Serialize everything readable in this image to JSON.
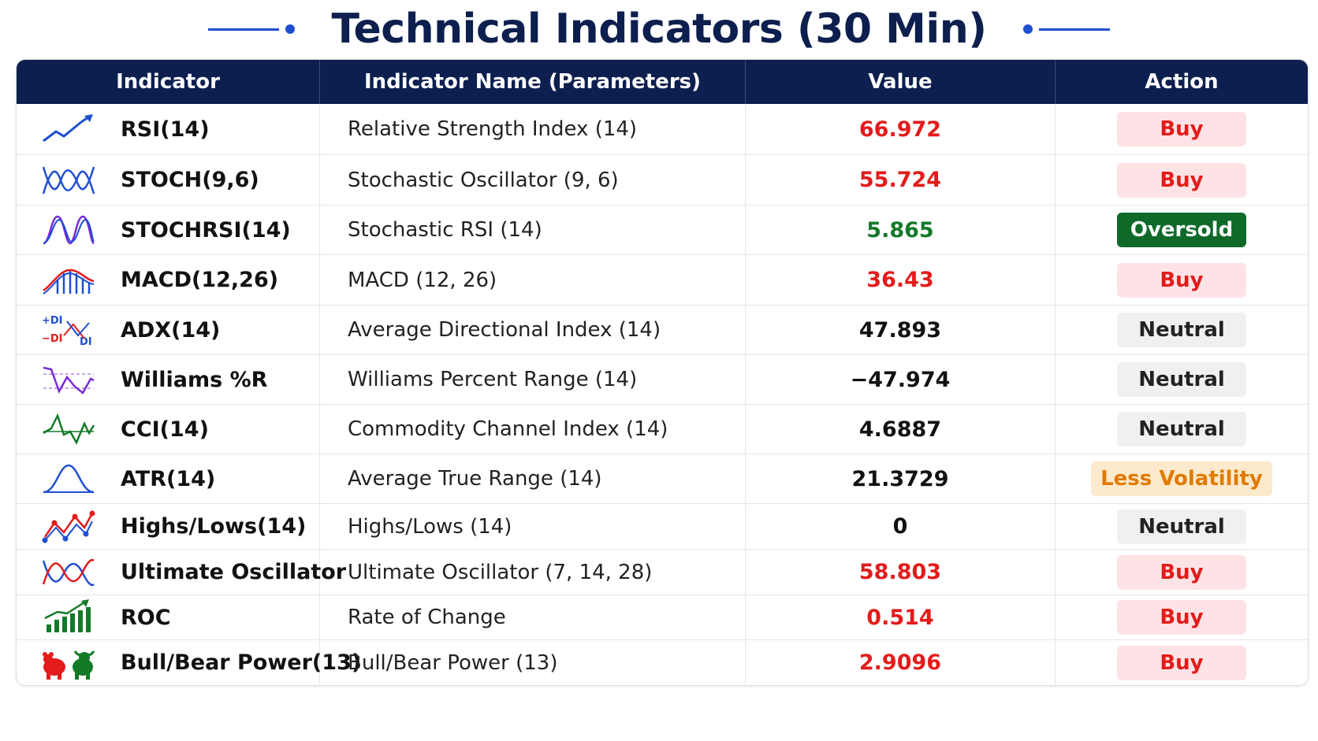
{
  "title": "Technical Indicators (30 Min)",
  "colors": {
    "header_bg": "#0c1f4e",
    "accent": "#1f4fd1",
    "buy_text": "#e31b1b",
    "buy_bg": "#fde3e5",
    "oversold_bg": "#0f6a2a",
    "neutral_bg": "#eef0f2",
    "less_volatility_text": "#e07a00",
    "less_volatility_bg": "#fde9cc"
  },
  "table": {
    "headers": [
      "Indicator",
      "Indicator Name (Parameters)",
      "Value",
      "Action"
    ],
    "rows": [
      {
        "icon": "trend-up-icon",
        "code": "RSI(14)",
        "name": "Relative Strength Index (14)",
        "value": "66.972",
        "value_color": "red",
        "action": "Buy",
        "action_style": "buy"
      },
      {
        "icon": "crossing-waves-icon",
        "code": "STOCH(9,6)",
        "name": "Stochastic Oscillator (9, 6)",
        "value": "55.724",
        "value_color": "red",
        "action": "Buy",
        "action_style": "buy"
      },
      {
        "icon": "purple-wave-icon",
        "code": "STOCHRSI(14)",
        "name": "Stochastic RSI (14)",
        "value": "5.865",
        "value_color": "green",
        "action": "Oversold",
        "action_style": "oversold"
      },
      {
        "icon": "histogram-lines-icon",
        "code": "MACD(12,26)",
        "name": "MACD (12, 26)",
        "value": "36.43",
        "value_color": "red",
        "action": "Buy",
        "action_style": "buy"
      },
      {
        "icon": "di-cross-icon",
        "code": "ADX(14)",
        "name": "Average Directional Index (14)",
        "value": "47.893",
        "value_color": "black",
        "action": "Neutral",
        "action_style": "neutral",
        "icon_labels": {
          "plus_di": "+DI",
          "minus_di": "−DI",
          "di": "DI"
        }
      },
      {
        "icon": "zigzag-band-icon",
        "code": "Williams %R",
        "name": "Williams Percent Range (14)",
        "value": "−47.974",
        "value_color": "black",
        "action": "Neutral",
        "action_style": "neutral"
      },
      {
        "icon": "green-zigzag-icon",
        "code": "CCI(14)",
        "name": "Commodity Channel Index (14)",
        "value": "4.6887",
        "value_color": "black",
        "action": "Neutral",
        "action_style": "neutral"
      },
      {
        "icon": "bell-curve-icon",
        "code": "ATR(14)",
        "name": "Average True Range (14)",
        "value": "21.3729",
        "value_color": "black",
        "action": "Less Volatility",
        "action_style": "lessvol"
      },
      {
        "icon": "highs-lows-icon",
        "code": "Highs/Lows(14)",
        "name": "Highs/Lows (14)",
        "value": "0",
        "value_color": "black",
        "action": "Neutral",
        "action_style": "neutral"
      },
      {
        "icon": "red-blue-waves-icon",
        "code": "Ultimate Oscillator",
        "name": "Ultimate Oscillator (7, 14, 28)",
        "value": "58.803",
        "value_color": "red",
        "action": "Buy",
        "action_style": "buy"
      },
      {
        "icon": "bar-growth-icon",
        "code": "ROC",
        "name": "Rate of Change",
        "value": "0.514",
        "value_color": "red",
        "action": "Buy",
        "action_style": "buy"
      },
      {
        "icon": "bull-bear-icon",
        "code": "Bull/Bear Power(13)",
        "name": "Bull/Bear Power (13)",
        "value": "2.9096",
        "value_color": "red",
        "action": "Buy",
        "action_style": "buy"
      }
    ]
  }
}
